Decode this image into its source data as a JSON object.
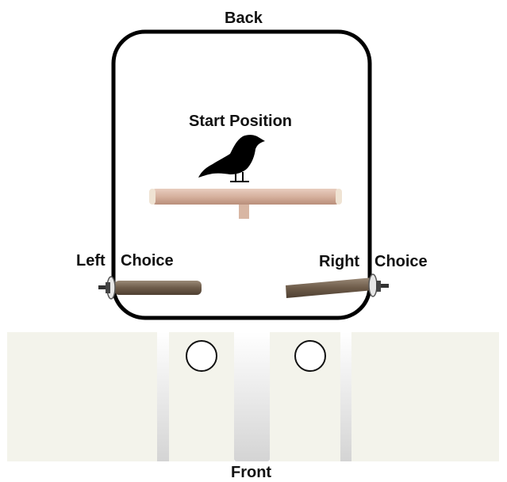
{
  "labels": {
    "back": "Back",
    "start": "Start Position",
    "left_a": "Left",
    "left_b": "Choice",
    "right_a": "Right",
    "right_b": "Choice",
    "front": "Front"
  },
  "colors": {
    "cage_outline": "#000000",
    "panel": "#f3f3eb",
    "gap_gradient_top": "#ffffff",
    "gap_gradient_bottom": "#d6d6d6",
    "perch_light": "#d9b8a6",
    "perch_bark": "#7a6a58",
    "bird": "#000000",
    "hole_stroke": "#111111"
  },
  "icons": {
    "bird": "crow-silhouette-icon",
    "holes": "circle-hole-icon"
  }
}
